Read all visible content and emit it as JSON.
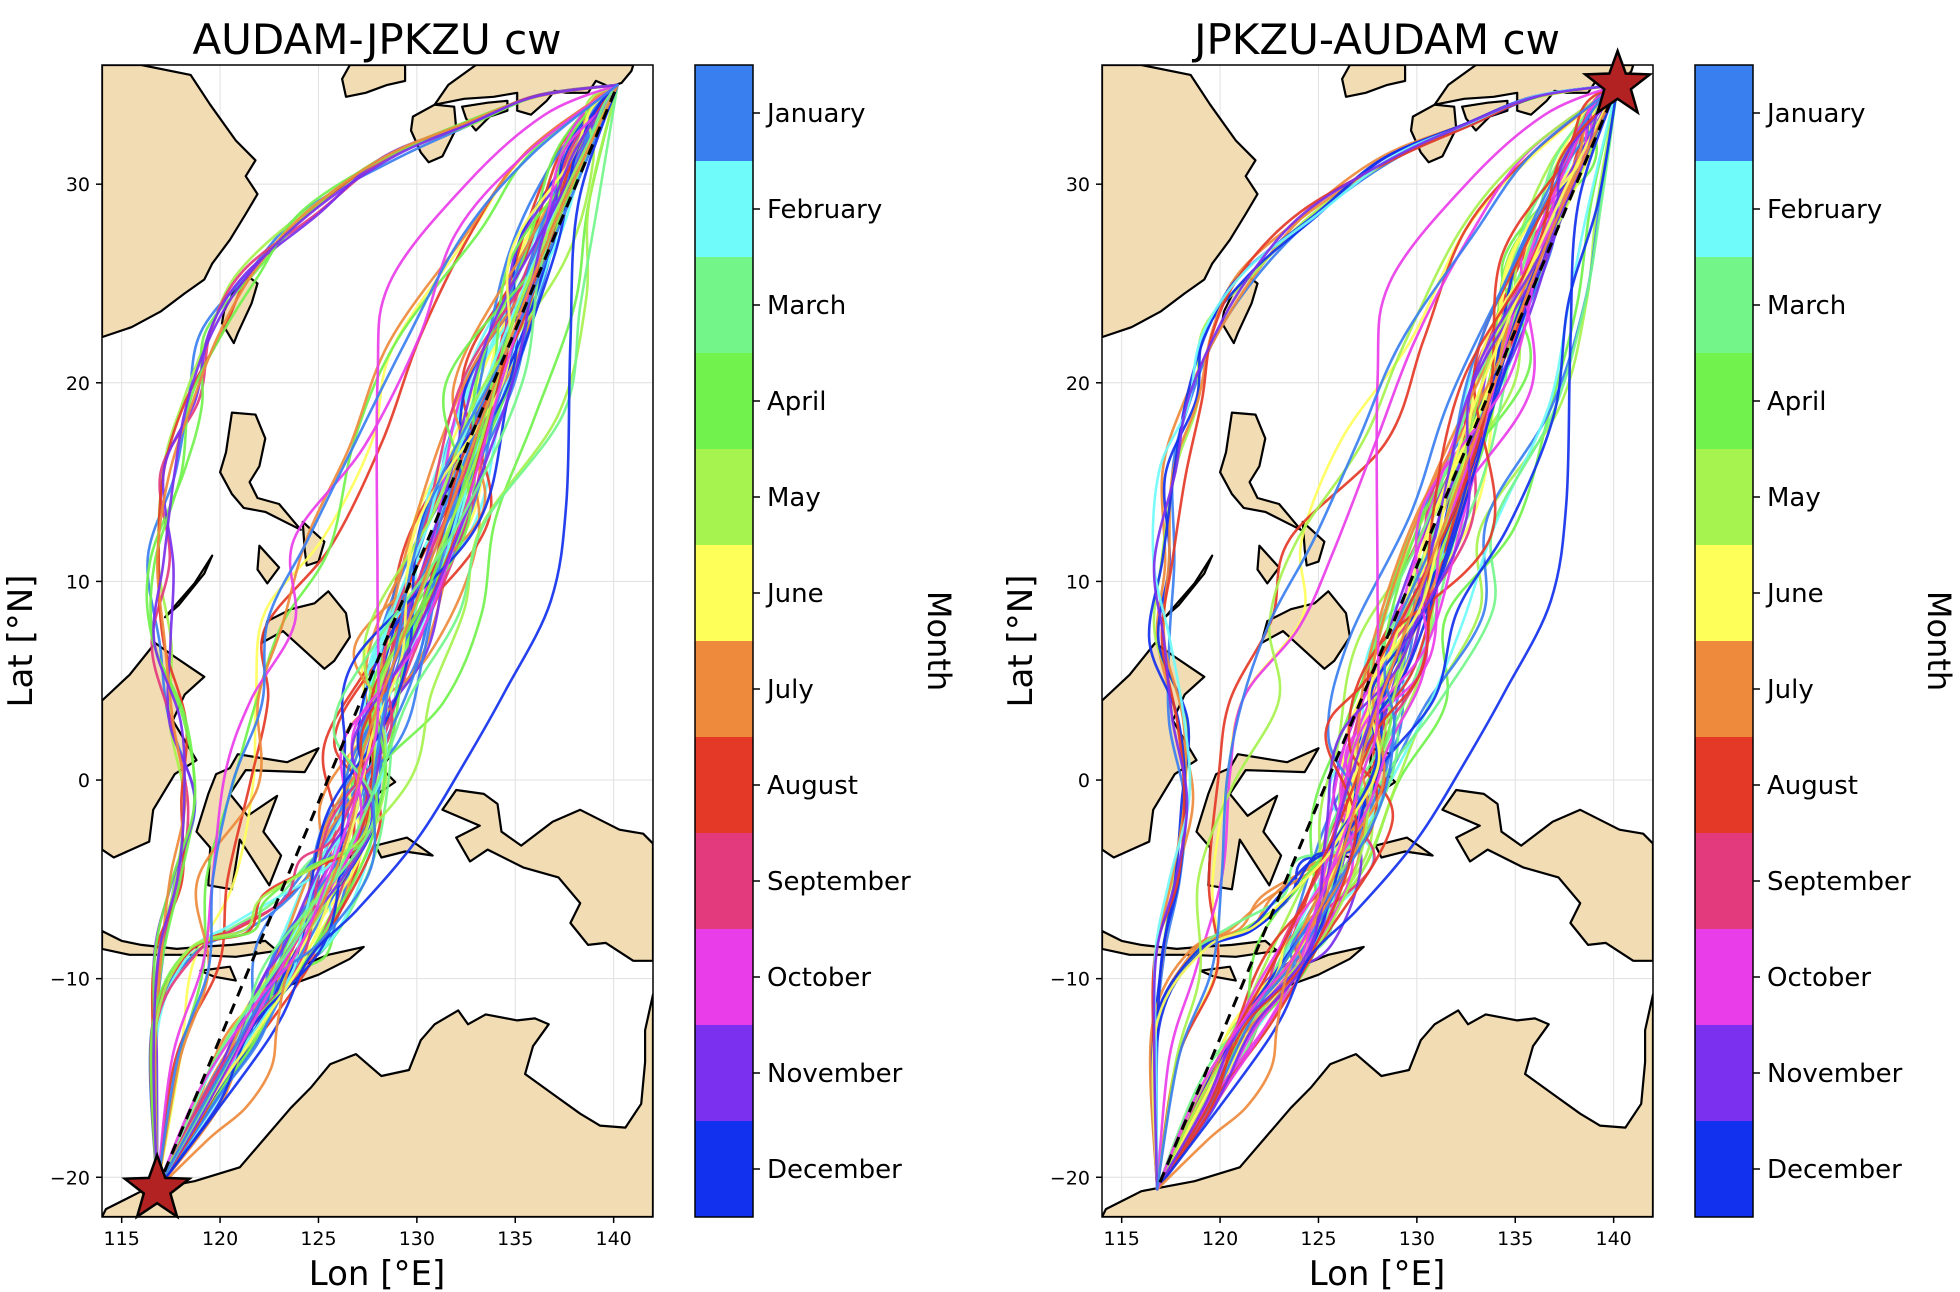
{
  "panels": [
    {
      "title": "AUDAM-JPKZU cw",
      "xlabel": "Lon [°E]",
      "ylabel": "Lat [°N]",
      "xticks": [
        "115",
        "120",
        "125",
        "130",
        "135",
        "140"
      ],
      "yticks": [
        "30",
        "20",
        "10",
        "0",
        "−10",
        "−20"
      ],
      "origin": "AUDAM",
      "destination": "JPKZU",
      "star_at": "origin"
    },
    {
      "title": "JPKZU-AUDAM cw",
      "xlabel": "Lon [°E]",
      "ylabel": "Lat [°N]",
      "xticks": [
        "115",
        "120",
        "125",
        "130",
        "135",
        "140"
      ],
      "yticks": [
        "30",
        "20",
        "10",
        "0",
        "−10",
        "−20"
      ],
      "origin": "JPKZU",
      "destination": "AUDAM",
      "star_at": "origin"
    }
  ],
  "colorbar": {
    "title": "Month",
    "labels": [
      "January",
      "February",
      "March",
      "April",
      "May",
      "June",
      "July",
      "August",
      "September",
      "October",
      "November",
      "December"
    ],
    "colors": [
      "#3a7ff0",
      "#6ffbfa",
      "#73f58a",
      "#72f24d",
      "#a6f24e",
      "#ffff5a",
      "#ee8a3c",
      "#e53928",
      "#e33a7e",
      "#e93de9",
      "#7a30ee",
      "#1231ee"
    ]
  },
  "chart_data": {
    "type": "map",
    "projection": "PlateCarree",
    "xlim": [
      114,
      142
    ],
    "ylim": [
      -22,
      36
    ],
    "grid": true,
    "ports": {
      "AUDAM": {
        "lon": 116.8,
        "lat": -20.6
      },
      "JPKZU": {
        "lon": 140.2,
        "lat": 35.0
      }
    },
    "great_circle": "dashed black"
  }
}
